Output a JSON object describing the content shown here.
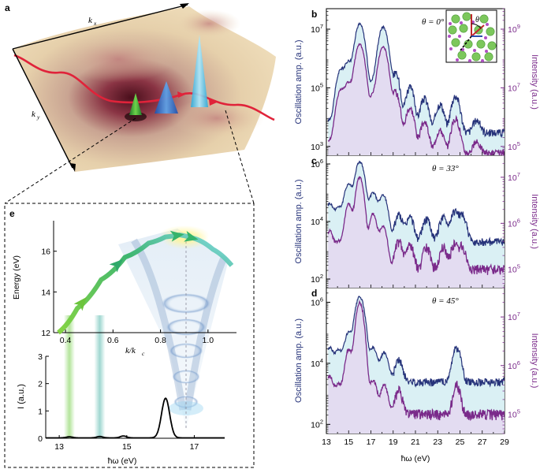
{
  "panel_labels": {
    "a": "a",
    "b": "b",
    "c": "c",
    "d": "d",
    "e": "e"
  },
  "panel_a": {
    "kx_label": "k",
    "kx_sub": "x",
    "ky_label": "k",
    "ky_sub": "y"
  },
  "colors": {
    "amp": "#26337a",
    "int": "#7a2a8a",
    "amp_fill": "#d6eef3",
    "int_fill": "#e4daf0",
    "dispersion_start": "#7fd23a",
    "dispersion_end": "#1f9c8c",
    "intensity_curve": "#000000"
  },
  "chart_data": [
    {
      "id": "b",
      "type": "line",
      "log_y": true,
      "annotation": "θ = 0°",
      "xlim": [
        13,
        29
      ],
      "ylim": [
        500,
        50000000
      ],
      "y2lim": [
        50000,
        5000000000
      ],
      "ylabel": "Oscillation amp. (a.u.)",
      "y2label": "Intensity (a.u.)",
      "yticks": [
        {
          "v": 1000,
          "m": "3"
        },
        {
          "v": 100000,
          "m": "5"
        },
        {
          "v": 10000000,
          "m": "7"
        }
      ],
      "y2ticks": [
        {
          "v": 100000,
          "m": "5"
        },
        {
          "v": 10000000,
          "m": "7"
        },
        {
          "v": 1000000000,
          "m": "9"
        }
      ],
      "baseline": {
        "amp": 3000,
        "int": 60000
      },
      "peaks": {
        "x": [
          13.3,
          14.3,
          15.0,
          16.0,
          17.2,
          18.1,
          19.2,
          20.5,
          21.8,
          23.2,
          24.6,
          26.5
        ],
        "amp": [
          5000,
          400000,
          800000,
          15000000,
          180000,
          12000000,
          300000,
          100000,
          40000,
          25000,
          50000,
          5000
        ],
        "int": [
          100000,
          8000000,
          15000000,
          300000000,
          6000000,
          250000000,
          7000000,
          2000000,
          600000,
          300000,
          800000,
          80000
        ]
      },
      "width": 0.28
    },
    {
      "id": "c",
      "type": "line",
      "log_y": true,
      "annotation": "θ = 33°",
      "xlim": [
        13,
        29
      ],
      "ylim": [
        50,
        2000000
      ],
      "y2lim": [
        40000,
        30000000
      ],
      "ylabel": "Oscillation amp. (a.u.)",
      "y2label": "Intensity (a.u.)",
      "yticks": [
        {
          "v": 100,
          "m": "2"
        },
        {
          "v": 10000,
          "m": "4"
        },
        {
          "v": 1000000,
          "m": "6"
        }
      ],
      "y2ticks": [
        {
          "v": 100000,
          "m": "5"
        },
        {
          "v": 1000000,
          "m": "6"
        },
        {
          "v": 10000000,
          "m": "7"
        }
      ],
      "baseline": {
        "amp": 2000,
        "int": 100000
      },
      "peaks": {
        "x": [
          13.3,
          14.1,
          15.0,
          16.0,
          17.2,
          18.1,
          19.5,
          20.5,
          22.0,
          23.5,
          24.5,
          25.2
        ],
        "amp": [
          40000,
          30000,
          200000,
          1200000,
          100000,
          80000,
          15000,
          12000,
          10000,
          12000,
          20000,
          15000
        ],
        "int": [
          600000,
          300000,
          2500000,
          10000000,
          1500000,
          800000,
          300000,
          250000,
          200000,
          200000,
          250000,
          200000
        ]
      },
      "width": 0.28
    },
    {
      "id": "d",
      "type": "line",
      "log_y": true,
      "annotation": "θ = 45°",
      "xlim": [
        13,
        29
      ],
      "ylim": [
        50,
        3000000
      ],
      "y2lim": [
        40000,
        40000000
      ],
      "ylabel": "Oscillation amp. (a.u.)",
      "y2label": "Intensity (a.u.)",
      "yticks": [
        {
          "v": 100,
          "m": "2"
        },
        {
          "v": 10000,
          "m": "4"
        },
        {
          "v": 1000000,
          "m": "6"
        }
      ],
      "y2ticks": [
        {
          "v": 100000,
          "m": "5"
        },
        {
          "v": 1000000,
          "m": "6"
        },
        {
          "v": 10000000,
          "m": "7"
        }
      ],
      "baseline": {
        "amp": 2500,
        "int": 100000
      },
      "peaks": {
        "x": [
          13.3,
          14.1,
          15.0,
          16.0,
          17.2,
          18.2,
          19.5,
          24.7
        ],
        "amp": [
          30000,
          25000,
          100000,
          1500000,
          30000,
          20000,
          10000,
          30000
        ],
        "int": [
          500000,
          300000,
          2000000,
          20000000,
          400000,
          300000,
          200000,
          300000
        ]
      },
      "width": 0.28
    },
    {
      "id": "e_dispersion",
      "type": "line",
      "xlim": [
        0.35,
        1.12
      ],
      "ylim": [
        12,
        17.5
      ],
      "xticks": [
        "0.4",
        "0.6",
        "0.8",
        "1.0"
      ],
      "yticks": [
        "12",
        "14",
        "16"
      ],
      "xlabel": "k/k",
      "xlabel_sub": "c",
      "ylabel": "Energy (eV)",
      "x": [
        0.37,
        0.45,
        0.55,
        0.65,
        0.75,
        0.82,
        0.88,
        0.95,
        1.02,
        1.1
      ],
      "y": [
        12.0,
        13.2,
        14.6,
        15.7,
        16.4,
        16.7,
        16.8,
        16.6,
        16.1,
        15.3
      ],
      "arrows_at_x": [
        0.47,
        0.62,
        0.87,
        0.93
      ]
    },
    {
      "id": "e_intensity",
      "type": "line",
      "xlim": [
        12.6,
        17.9
      ],
      "ylim": [
        0,
        3
      ],
      "xticks": [
        "13",
        "15",
        "17"
      ],
      "yticks": [
        "0",
        "1",
        "2",
        "3"
      ],
      "xlabel": "ħω (eV)",
      "ylabel": "I (a.u.)",
      "peaks": {
        "x": [
          13.3,
          14.2,
          14.9,
          16.15
        ],
        "y": [
          0.04,
          0.05,
          0.07,
          1.45
        ]
      },
      "width": 0.12,
      "glow_columns_x": [
        13.3,
        14.2
      ]
    }
  ],
  "shared_xaxis": {
    "ticks": [
      "13",
      "15",
      "17",
      "19",
      "21",
      "23",
      "25",
      "27",
      "29"
    ],
    "label": "ħω (eV)"
  }
}
